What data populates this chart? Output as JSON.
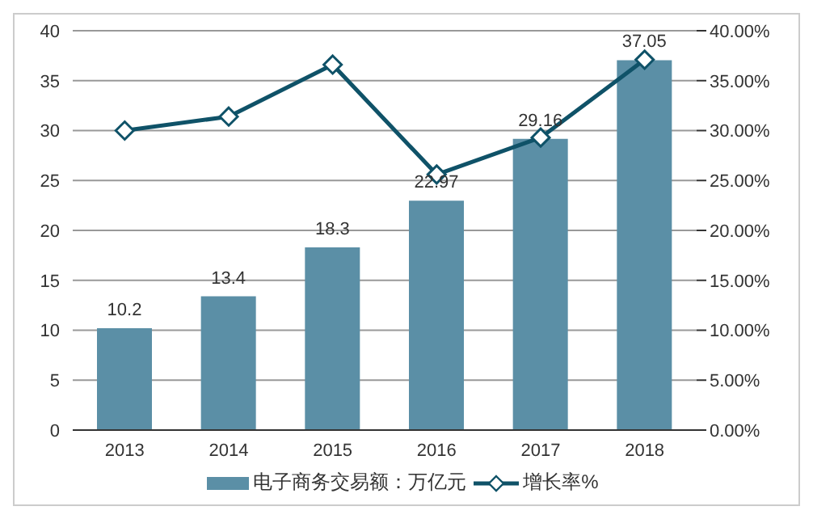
{
  "chart_data": {
    "type": "bar",
    "categories": [
      "2013",
      "2014",
      "2015",
      "2016",
      "2017",
      "2018"
    ],
    "series": [
      {
        "name": "电子商务交易额：万亿元",
        "color": "#5b8fa6",
        "values": [
          10.2,
          13.4,
          18.3,
          22.97,
          29.16,
          37.05
        ],
        "value_labels": [
          "10.2",
          "13.4",
          "18.3",
          "22.97",
          "29.16",
          "37.05"
        ]
      },
      {
        "name": "增长率%",
        "type": "line",
        "axis": "y2",
        "color": "#0f5268",
        "marker": "diamond",
        "values": [
          30.0,
          31.4,
          36.6,
          25.6,
          29.3,
          37.1
        ]
      }
    ],
    "ylim": [
      0,
      40
    ],
    "yticks": [
      0,
      5,
      10,
      15,
      20,
      25,
      30,
      35,
      40
    ],
    "y2lim": [
      0,
      40
    ],
    "y2ticks": [
      {
        "value": 0,
        "label": "0.00%"
      },
      {
        "value": 5,
        "label": "5.00%"
      },
      {
        "value": 10,
        "label": "10.00%"
      },
      {
        "value": 15,
        "label": "15.00%"
      },
      {
        "value": 20,
        "label": "20.00%"
      },
      {
        "value": 25,
        "label": "25.00%"
      },
      {
        "value": 30,
        "label": "30.00%"
      },
      {
        "value": 35,
        "label": "35.00%"
      },
      {
        "value": 40,
        "label": "40.00%"
      }
    ],
    "grid": "y",
    "legend": "bottom"
  }
}
